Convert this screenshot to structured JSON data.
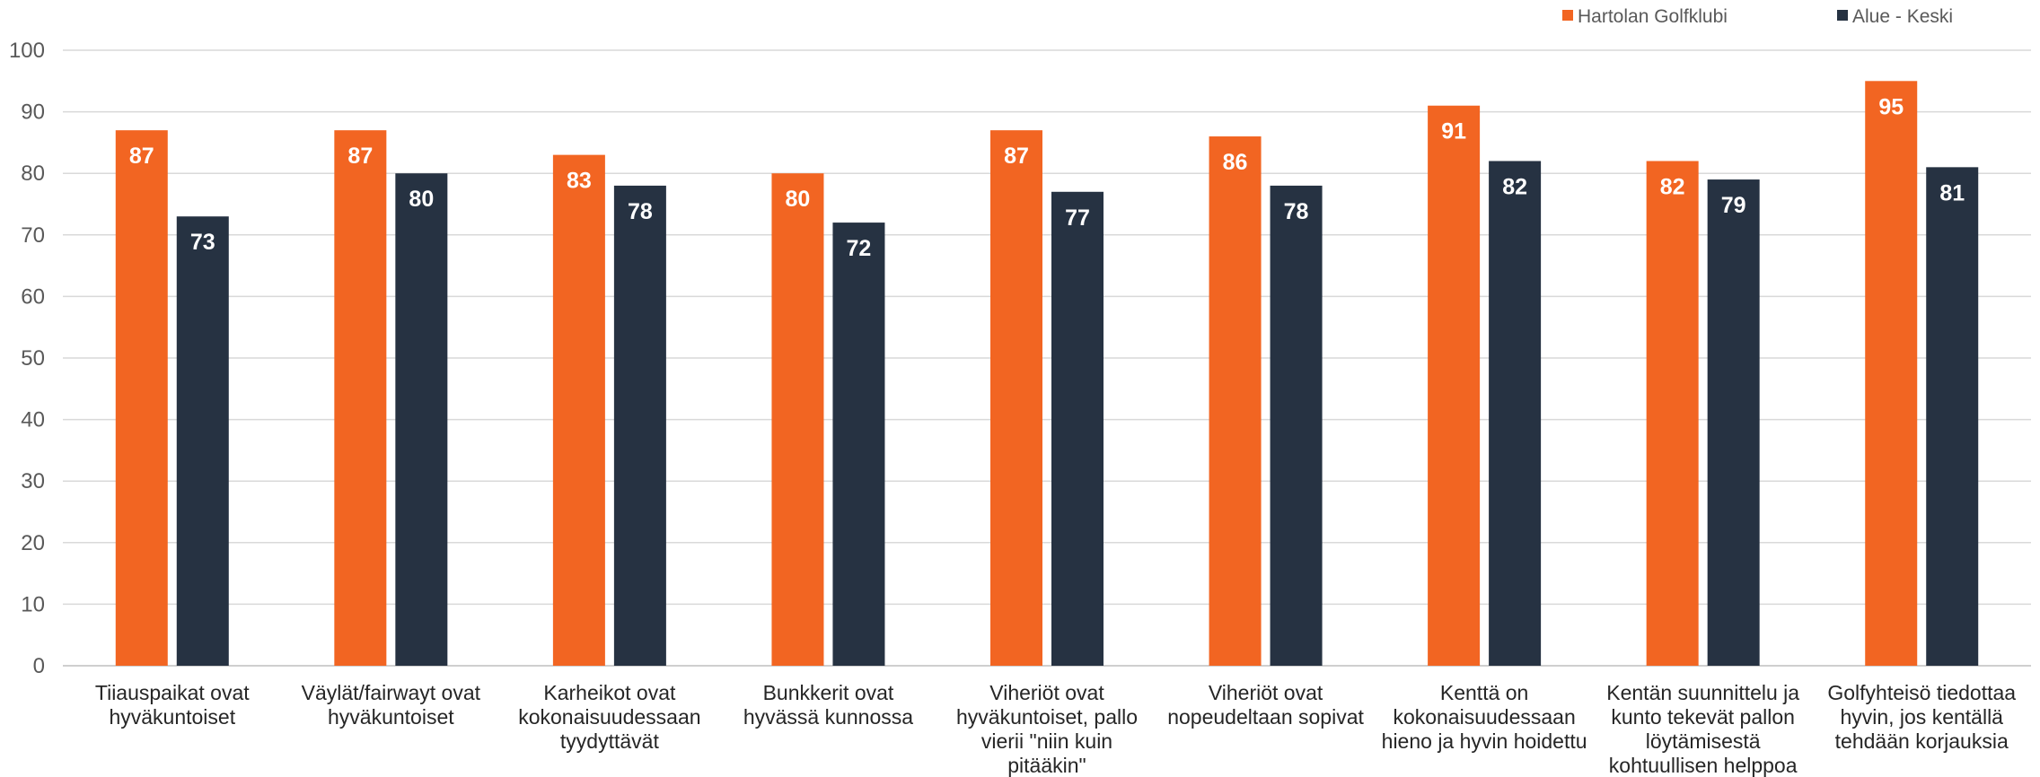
{
  "chart_data": {
    "type": "bar",
    "categories": [
      "Tiiauspaikat ovat hyväkuntoiset",
      "Väylät/fairwayt ovat hyväkuntoiset",
      "Karheikot ovat kokonaisuudessaan tyydyttävät",
      "Bunkkerit ovat hyvässä kunnossa",
      "Viheriöt ovat hyväkuntoiset, pallo vierii \"niin kuin pitääkin\"",
      "Viheriöt ovat nopeudeltaan sopivat",
      "Kenttä on kokonaisuudessaan hieno ja hyvin hoidettu",
      "Kentän suunnittelu ja kunto tekevät pallon löytämisestä kohtuullisen helppoa",
      "Golfyhteisö tiedottaa hyvin, jos kentällä tehdään korjauksia"
    ],
    "category_lines": [
      [
        "Tiiauspaikat ovat",
        "hyväkuntoiset"
      ],
      [
        "Väylät/fairwayt ovat",
        "hyväkuntoiset"
      ],
      [
        "Karheikot ovat",
        "kokonaisuudessaan",
        "tyydyttävät"
      ],
      [
        "Bunkkerit ovat",
        "hyvässä kunnossa"
      ],
      [
        "Viheriöt ovat",
        "hyväkuntoiset, pallo",
        "vierii \"niin kuin",
        "pitääkin\""
      ],
      [
        "Viheriöt ovat",
        "nopeudeltaan sopivat"
      ],
      [
        "Kenttä on",
        "kokonaisuudessaan",
        "hieno ja hyvin hoidettu"
      ],
      [
        "Kentän suunnittelu ja",
        "kunto tekevät pallon",
        "löytämisestä",
        "kohtuullisen helppoa"
      ],
      [
        "Golfyhteisö tiedottaa",
        "hyvin, jos kentällä",
        "tehdään korjauksia"
      ]
    ],
    "series": [
      {
        "name": "Hartolan Golfklubi",
        "color": "#f26522",
        "values": [
          87,
          87,
          83,
          80,
          87,
          86,
          91,
          82,
          95
        ]
      },
      {
        "name": "Alue - Keski",
        "color": "#263242",
        "values": [
          73,
          80,
          78,
          72,
          77,
          78,
          82,
          79,
          81
        ]
      }
    ],
    "ylim": [
      0,
      100
    ],
    "yticks": [
      0,
      10,
      20,
      30,
      40,
      50,
      60,
      70,
      80,
      90,
      100
    ],
    "grid": true,
    "legend_position": "top-right",
    "data_labels": true
  }
}
